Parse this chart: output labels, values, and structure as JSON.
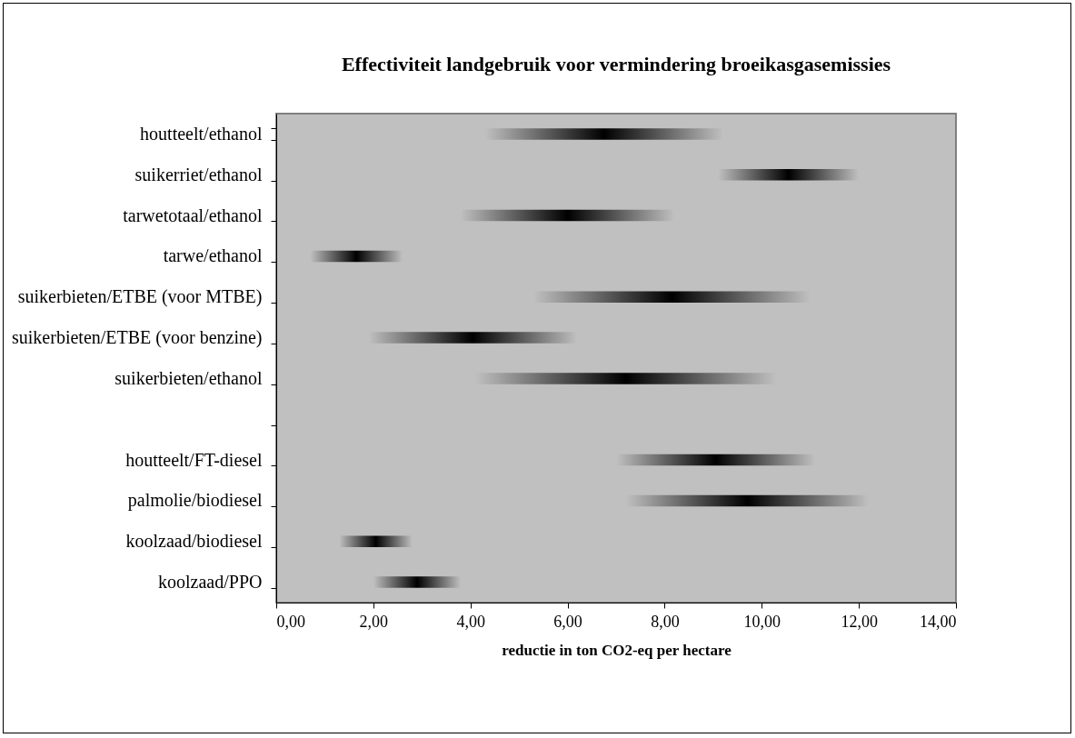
{
  "chart_data": {
    "type": "bar",
    "title": "Effectiviteit landgebruik voor vermindering broeikasgasemissies",
    "xlabel": "reductie in ton CO2-eq per hectare",
    "orientation": "horizontal",
    "categories": [
      "houtteelt/ethanol",
      "suikerriet/ethanol",
      "tarwetotaal/ethanol",
      "tarwe/ethanol",
      "suikerbieten/ETBE (voor MTBE)",
      "suikerbieten/ETBE (voor benzine)",
      "suikerbieten/ethanol",
      null,
      "houtteelt/FT-diesel",
      "palmolie/biodiesel",
      "koolzaad/biodiesel",
      "koolzaad/PPO"
    ],
    "base": [
      4.3,
      9.1,
      3.8,
      0.7,
      5.3,
      1.9,
      4.1,
      null,
      7.0,
      7.2,
      1.3,
      2.0
    ],
    "values": [
      4.9,
      2.9,
      4.4,
      1.9,
      5.7,
      4.3,
      6.2,
      null,
      4.1,
      5.0,
      1.5,
      1.8
    ],
    "color": "#000000",
    "xlim": [
      0,
      14
    ],
    "xticks": [
      {
        "value": 0,
        "label": "0,00"
      },
      {
        "value": 2,
        "label": "2,00"
      },
      {
        "value": 4,
        "label": "4,00"
      },
      {
        "value": 6,
        "label": "6,00"
      },
      {
        "value": 8,
        "label": "8,00"
      },
      {
        "value": 10,
        "label": "10,00"
      },
      {
        "value": 12,
        "label": "12,00"
      },
      {
        "value": 14,
        "label": "14,00"
      }
    ],
    "grid": false
  }
}
